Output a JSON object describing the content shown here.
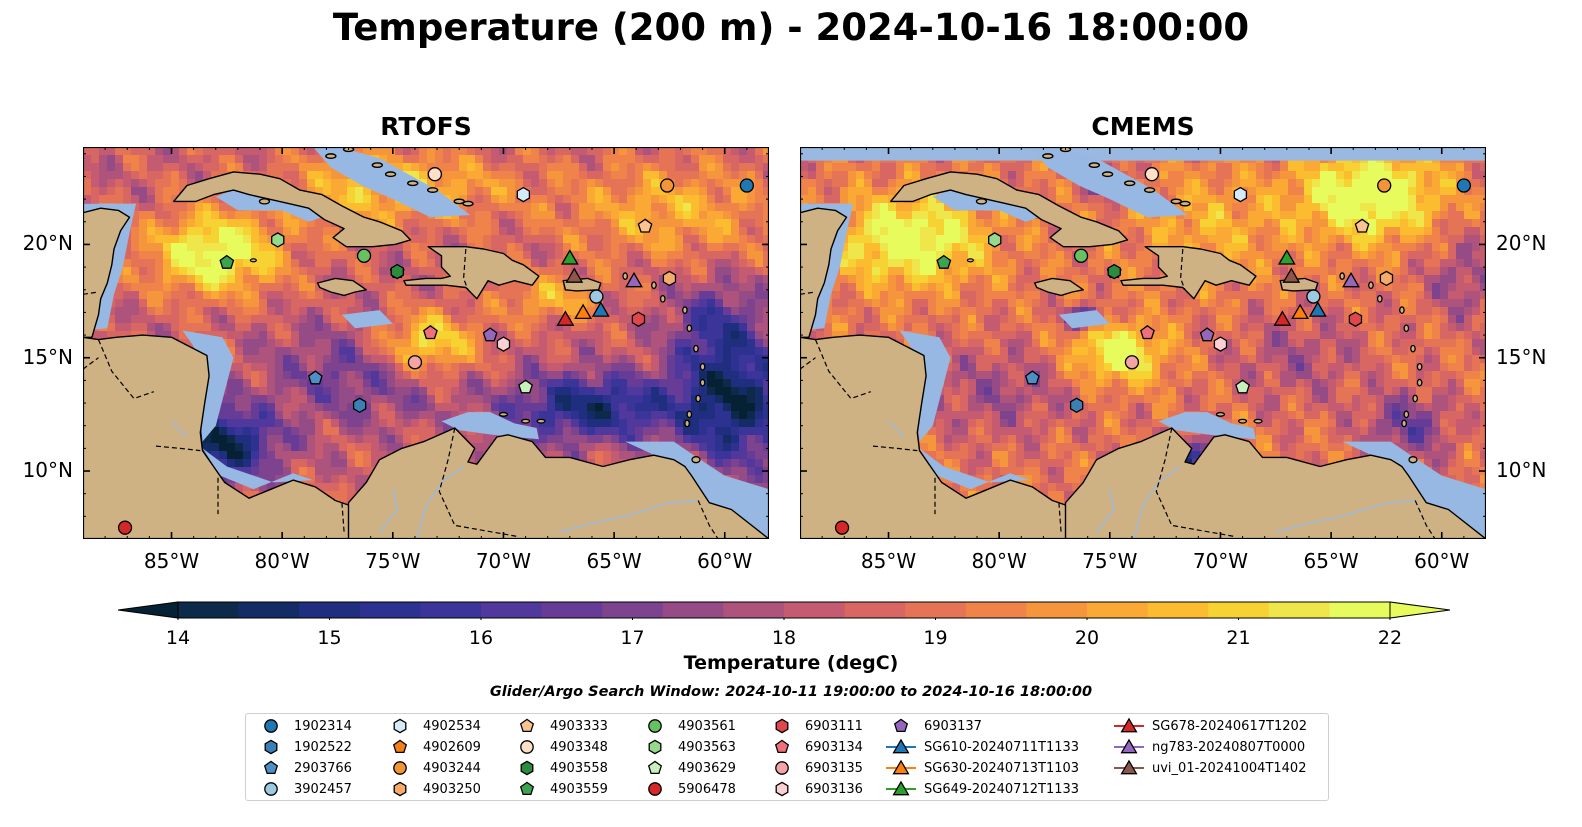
{
  "title": "Temperature (200 m) - 2024-10-16 18:00:00",
  "maps": [
    {
      "title": "RTOFS",
      "style": "rtofs"
    },
    {
      "title": "CMEMS",
      "style": "cmems"
    }
  ],
  "map_extent": {
    "lon": [
      -89,
      -58
    ],
    "lat": [
      7,
      24.3
    ]
  },
  "lat_ticks": [
    "20°N",
    "15°N",
    "10°N"
  ],
  "lat_tick_values": [
    20,
    15,
    10
  ],
  "lon_ticks": [
    "85°W",
    "80°W",
    "75°W",
    "70°W",
    "65°W",
    "60°W"
  ],
  "lon_tick_values": [
    -85,
    -80,
    -75,
    -70,
    -65,
    -60
  ],
  "colorbar": {
    "label": "Temperature (degC)",
    "min": 14,
    "max": 22,
    "ticks": [
      "14",
      "15",
      "16",
      "17",
      "18",
      "19",
      "20",
      "21",
      "22"
    ],
    "colors": [
      "#0d2a4b",
      "#142c66",
      "#1f2e7e",
      "#2d3190",
      "#3c3599",
      "#51389c",
      "#663c97",
      "#7d438e",
      "#954b86",
      "#ad537c",
      "#c45b70",
      "#d86663",
      "#e57356",
      "#ef834a",
      "#f5963d",
      "#f9a934",
      "#fbbd2f",
      "#f6d232",
      "#eee64b",
      "#e8fb5c"
    ],
    "under_color": "#052133",
    "over_color": "#e8fb5c"
  },
  "search_window": "Glider/Argo Search Window: 2024-10-11 19:00:00 to 2024-10-16 18:00:00",
  "platforms": [
    {
      "id": "1902314",
      "marker": "circle",
      "color": "#1f77b4",
      "lon": -59,
      "lat": 22.6
    },
    {
      "id": "1902522",
      "marker": "hexagon",
      "color": "#3a80b4",
      "lon": -76.5,
      "lat": 12.9
    },
    {
      "id": "2903766",
      "marker": "pentagon",
      "color": "#4d8ec4",
      "lon": -78.5,
      "lat": 14.1
    },
    {
      "id": "3902457",
      "marker": "circle",
      "color": "#9ecae1",
      "lon": -65.8,
      "lat": 17.7
    },
    {
      "id": "4902534",
      "marker": "hexagon",
      "color": "#d5e9f7",
      "lon": -69.1,
      "lat": 22.2
    },
    {
      "id": "4902609",
      "marker": "pentagon",
      "color": "#f07f1c",
      "lon": -74.8,
      "lat": 18.8
    },
    {
      "id": "4903244",
      "marker": "circle",
      "color": "#f3943a",
      "lon": -62.6,
      "lat": 22.6
    },
    {
      "id": "4903250",
      "marker": "hexagon",
      "color": "#f5ab6b",
      "lon": -62.5,
      "lat": 18.5
    },
    {
      "id": "4903333",
      "marker": "pentagon",
      "color": "#fbc38f",
      "lon": -63.6,
      "lat": 20.8
    },
    {
      "id": "4903348",
      "marker": "circle",
      "color": "#fde0c5",
      "lon": -73.1,
      "lat": 23.1
    },
    {
      "id": "4903558",
      "marker": "hexagon",
      "color": "#2a8c3c",
      "lon": -74.8,
      "lat": 18.8
    },
    {
      "id": "4903559",
      "marker": "pentagon",
      "color": "#3ea34e",
      "lon": -82.5,
      "lat": 19.2
    },
    {
      "id": "4903561",
      "marker": "circle",
      "color": "#66c160",
      "lon": -76.3,
      "lat": 19.5
    },
    {
      "id": "4903563",
      "marker": "hexagon",
      "color": "#97d98c",
      "lon": -80.2,
      "lat": 20.2
    },
    {
      "id": "4903629",
      "marker": "pentagon",
      "color": "#c7f0bc",
      "lon": -69,
      "lat": 13.7
    },
    {
      "id": "5906478",
      "marker": "circle",
      "color": "#d62728",
      "lon": -87.1,
      "lat": 7.5
    },
    {
      "id": "6903111",
      "marker": "hexagon",
      "color": "#e0474d",
      "lon": -63.9,
      "lat": 16.7
    },
    {
      "id": "6903134",
      "marker": "pentagon",
      "color": "#f0707a",
      "lon": -73.3,
      "lat": 16.1
    },
    {
      "id": "6903135",
      "marker": "circle",
      "color": "#f4a3a6",
      "lon": -74,
      "lat": 14.8
    },
    {
      "id": "6903136",
      "marker": "hexagon",
      "color": "#fbd0d2",
      "lon": -70,
      "lat": 15.6
    },
    {
      "id": "6903137",
      "marker": "pentagon",
      "color": "#9467bd",
      "lon": -70.6,
      "lat": 16
    },
    {
      "id": "SG610-20240711T1133",
      "marker": "triangle",
      "color": "#1f77b4",
      "lon": -65.6,
      "lat": 17.1
    },
    {
      "id": "SG630-20240713T1103",
      "marker": "triangle",
      "color": "#ff7f0e",
      "lon": -66.4,
      "lat": 17
    },
    {
      "id": "SG649-20240712T1133",
      "marker": "triangle",
      "color": "#2ca02c",
      "lon": -67,
      "lat": 19.4
    },
    {
      "id": "SG678-20240617T1202",
      "marker": "triangle",
      "color": "#d62728",
      "lon": -67.2,
      "lat": 16.7
    },
    {
      "id": "ng783-20240807T0000",
      "marker": "triangle",
      "color": "#9467bd",
      "lon": -64.1,
      "lat": 18.4
    },
    {
      "id": "uvi_01-20241004T1402",
      "marker": "triangle",
      "color": "#8c564b",
      "lon": -66.8,
      "lat": 18.6
    }
  ],
  "legend": {
    "columns": [
      [
        "1902314",
        "1902522",
        "2903766",
        "3902457"
      ],
      [
        "4902534",
        "4902609",
        "4903244",
        "4903250"
      ],
      [
        "4903333",
        "4903348",
        "4903558",
        "4903559"
      ],
      [
        "4903561",
        "4903563",
        "4903629",
        "5906478"
      ],
      [
        "6903111",
        "6903134",
        "6903135",
        "6903136"
      ],
      [
        "6903137",
        "SG610-20240711T1133",
        "SG630-20240713T1103",
        "SG649-20240712T1133"
      ],
      [
        "SG678-20240617T1202",
        "ng783-20240807T0000",
        "uvi_01-20241004T1402"
      ]
    ]
  }
}
